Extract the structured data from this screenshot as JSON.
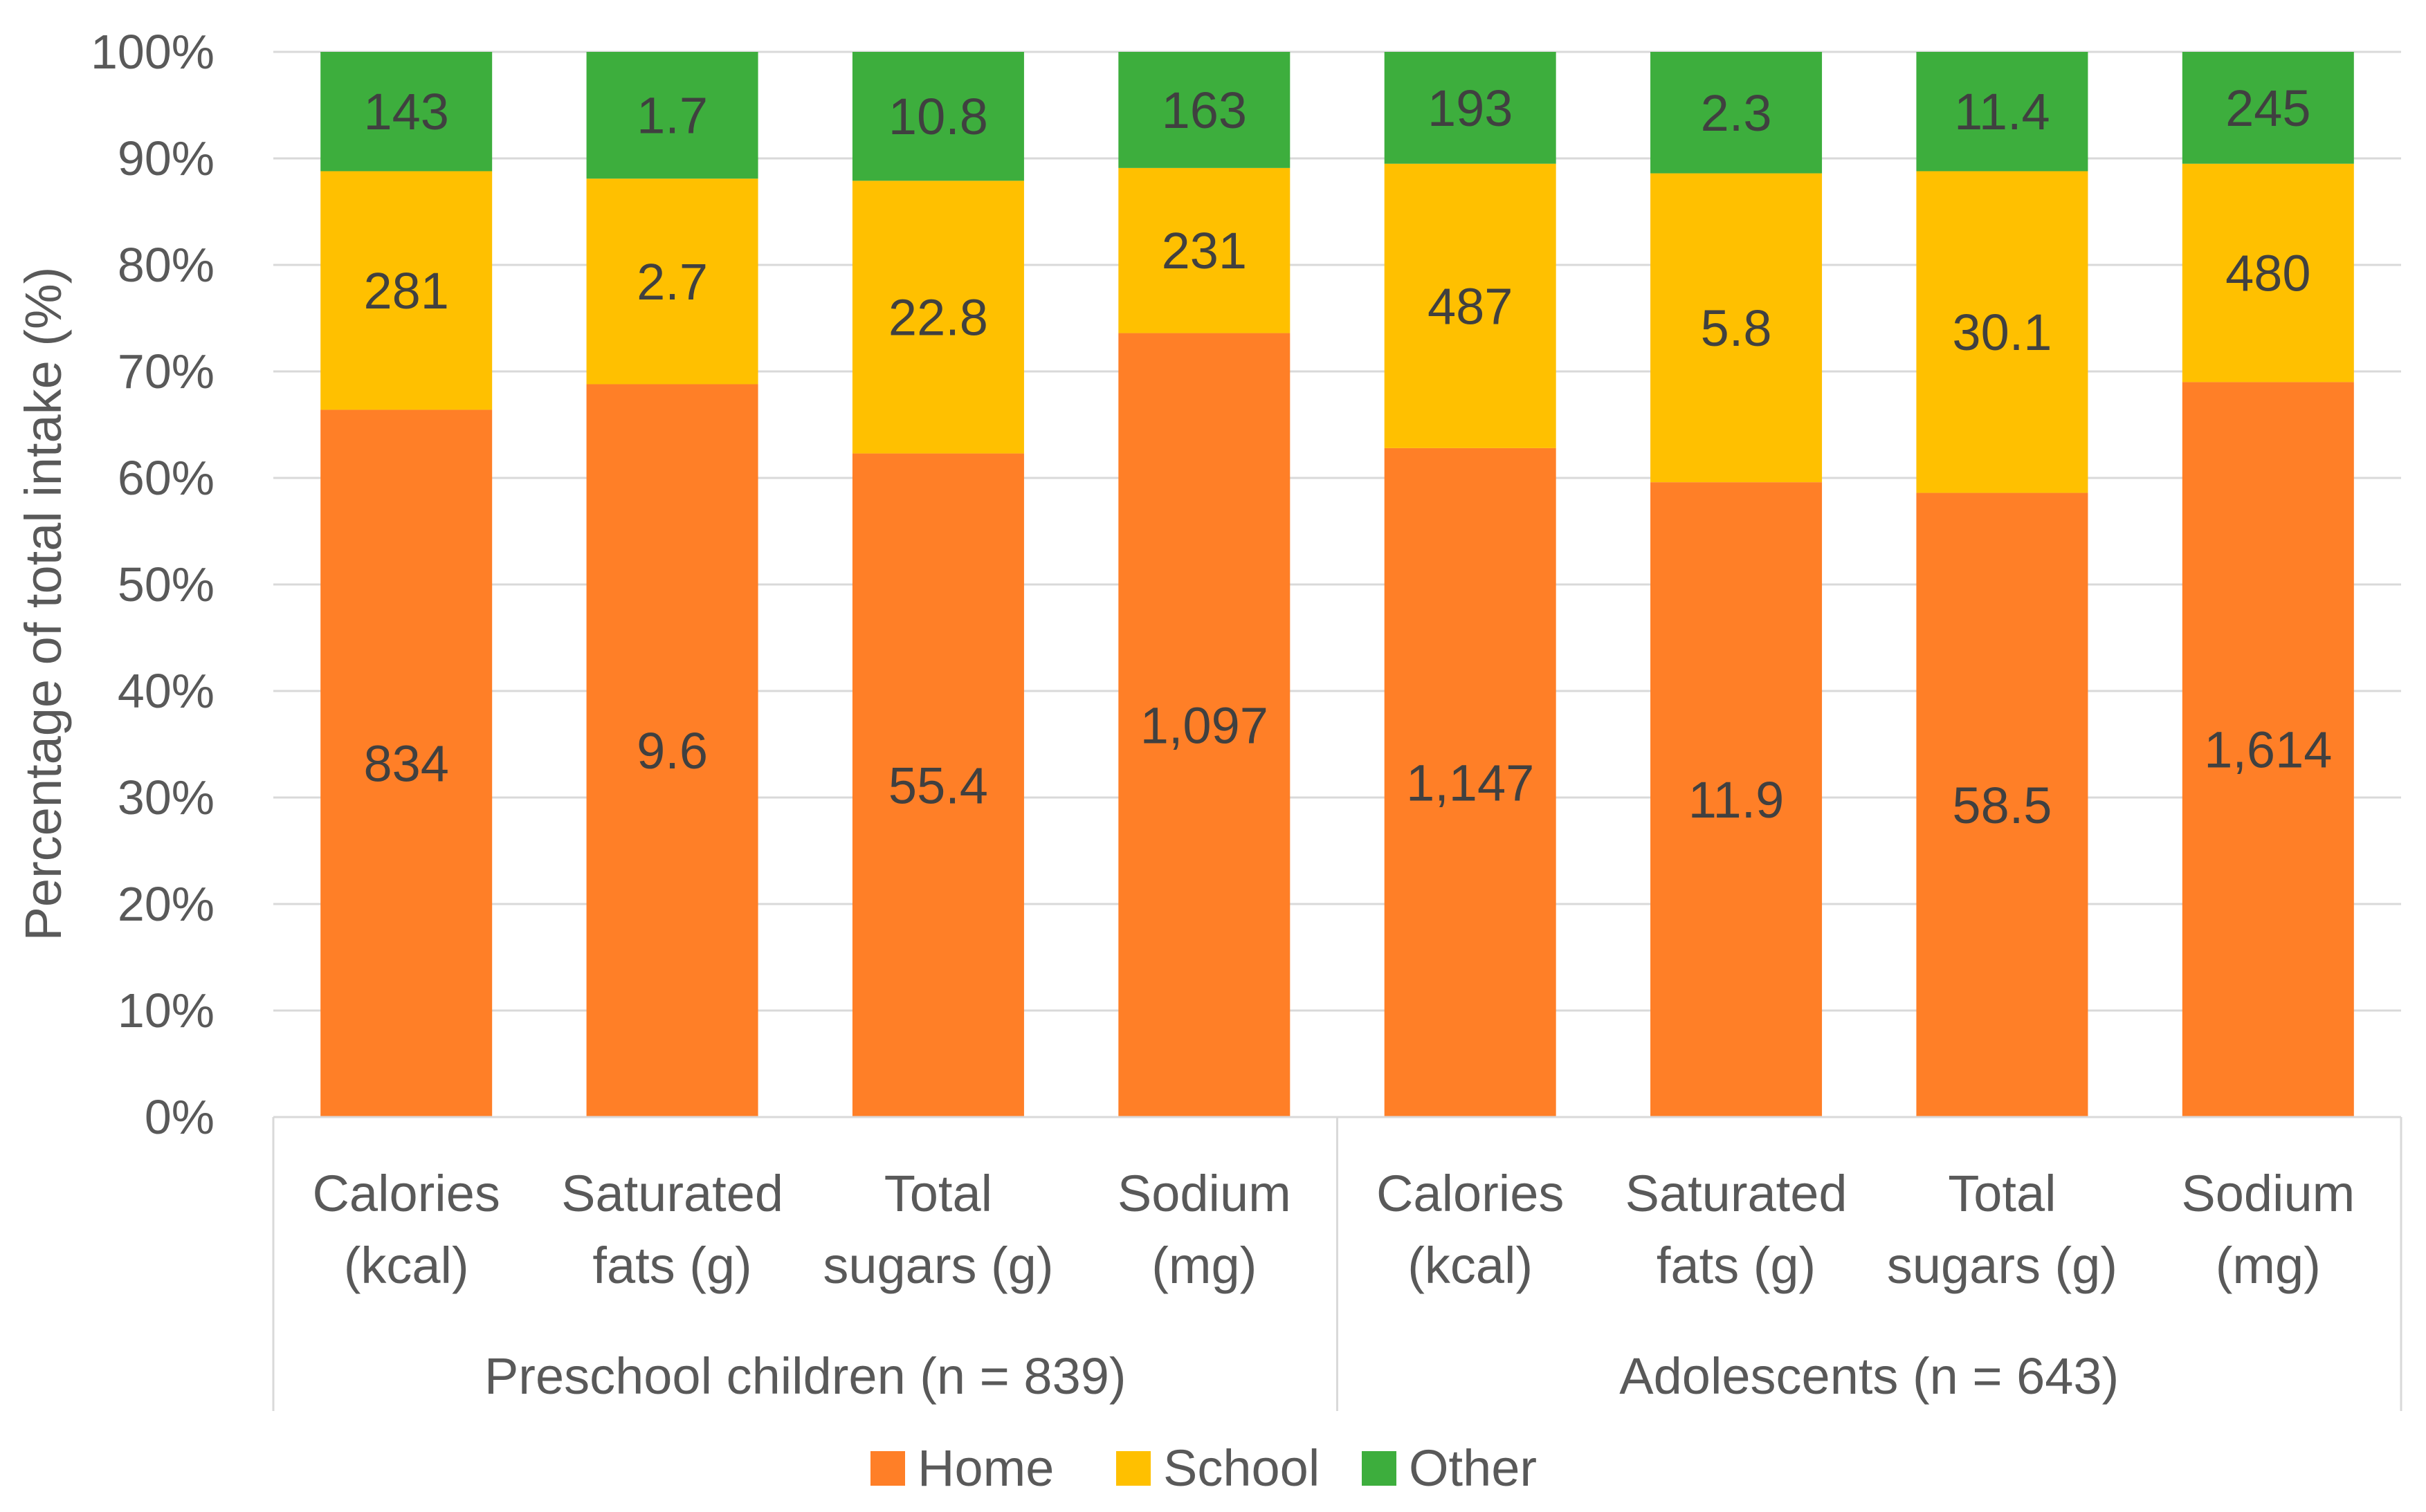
{
  "chart_data": {
    "type": "bar",
    "stacked": "percent",
    "ylabel": "Percentage of total intake (%)",
    "ylim": [
      0,
      100
    ],
    "yticks": [
      "0%",
      "10%",
      "20%",
      "30%",
      "40%",
      "50%",
      "60%",
      "70%",
      "80%",
      "90%",
      "100%"
    ],
    "grid": true,
    "legend_position": "bottom",
    "groups": [
      {
        "label": "Preschool children (n = 839)",
        "categories": [
          {
            "line1": "Calories",
            "line2": "(kcal)"
          },
          {
            "line1": "Saturated",
            "line2": "fats (g)"
          },
          {
            "line1": "Total",
            "line2": "sugars (g)"
          },
          {
            "line1": "Sodium",
            "line2": "(mg)"
          }
        ]
      },
      {
        "label": "Adolescents (n = 643)",
        "categories": [
          {
            "line1": "Calories",
            "line2": "(kcal)"
          },
          {
            "line1": "Saturated",
            "line2": "fats (g)"
          },
          {
            "line1": "Total",
            "line2": "sugars (g)"
          },
          {
            "line1": "Sodium",
            "line2": "(mg)"
          }
        ]
      }
    ],
    "series": [
      {
        "name": "Home",
        "color": "#FF7F27",
        "percent": [
          66.4,
          68.8,
          62.3,
          73.6,
          62.8,
          59.6,
          58.6,
          69.0
        ],
        "labels": [
          "834",
          "9.6",
          "55.4",
          "1,097",
          "1,147",
          "11.9",
          "58.5",
          "1,614"
        ]
      },
      {
        "name": "School",
        "color": "#FFC000",
        "percent": [
          22.4,
          19.3,
          25.6,
          15.5,
          26.7,
          29.0,
          30.2,
          20.5
        ],
        "labels": [
          "281",
          "2.7",
          "22.8",
          "231",
          "487",
          "5.8",
          "30.1",
          "480"
        ]
      },
      {
        "name": "Other",
        "color": "#3DAE3D",
        "percent": [
          11.2,
          11.9,
          12.1,
          10.9,
          10.5,
          11.4,
          11.2,
          10.5
        ],
        "labels": [
          "143",
          "1.7",
          "10.8",
          "163",
          "193",
          "2.3",
          "11.4",
          "245"
        ]
      }
    ]
  }
}
